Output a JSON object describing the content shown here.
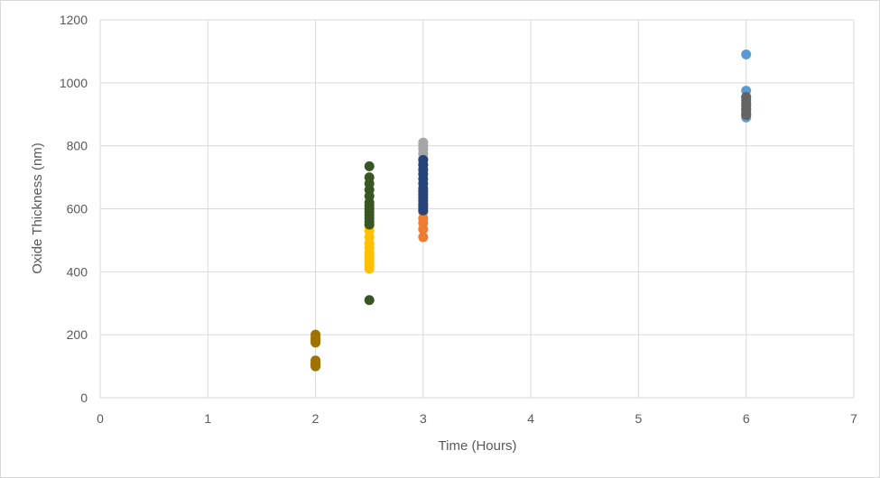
{
  "chart_data": {
    "type": "scatter",
    "title": "",
    "xlabel": "Time (Hours)",
    "ylabel": "Oxide Thickness (nm)",
    "xlim": [
      0,
      7
    ],
    "ylim": [
      0,
      1200
    ],
    "x_ticks": [
      "0",
      "1",
      "2",
      "3",
      "4",
      "5",
      "6",
      "7"
    ],
    "y_ticks": [
      "0",
      "200",
      "400",
      "600",
      "800",
      "1000",
      "1200"
    ],
    "grid": true,
    "legend": "none",
    "series": [
      {
        "color": "#5b9bd5",
        "points": [
          [
            6,
            1090
          ],
          [
            6,
            975
          ],
          [
            6,
            955
          ],
          [
            6,
            930
          ],
          [
            6,
            915
          ],
          [
            6,
            900
          ],
          [
            6,
            890
          ]
        ]
      },
      {
        "color": "#ed7d31",
        "points": [
          [
            3,
            510
          ],
          [
            3,
            535
          ],
          [
            3,
            555
          ],
          [
            3,
            570
          ],
          [
            3,
            590
          ],
          [
            3,
            610
          ]
        ]
      },
      {
        "color": "#a5a5a5",
        "points": [
          [
            3,
            810
          ],
          [
            3,
            800
          ],
          [
            3,
            790
          ],
          [
            3,
            775
          ],
          [
            3,
            760
          ],
          [
            3,
            740
          ],
          [
            3,
            720
          ]
        ]
      },
      {
        "color": "#ffc000",
        "points": [
          [
            2.5,
            410
          ],
          [
            2.5,
            420
          ],
          [
            2.5,
            430
          ],
          [
            2.5,
            440
          ],
          [
            2.5,
            450
          ],
          [
            2.5,
            460
          ],
          [
            2.5,
            475
          ],
          [
            2.5,
            490
          ],
          [
            2.5,
            510
          ],
          [
            2.5,
            530
          ],
          [
            2.5,
            545
          ]
        ]
      },
      {
        "color": "#264478",
        "points": [
          [
            3,
            595
          ],
          [
            3,
            605
          ],
          [
            3,
            615
          ],
          [
            3,
            625
          ],
          [
            3,
            635
          ],
          [
            3,
            645
          ],
          [
            3,
            655
          ],
          [
            3,
            665
          ],
          [
            3,
            680
          ],
          [
            3,
            695
          ],
          [
            3,
            710
          ],
          [
            3,
            725
          ],
          [
            3,
            740
          ],
          [
            3,
            755
          ]
        ]
      },
      {
        "color": "#9e7203",
        "points": [
          [
            2,
            100
          ],
          [
            2,
            105
          ],
          [
            2,
            110
          ],
          [
            2,
            118
          ],
          [
            2,
            175
          ],
          [
            2,
            182
          ],
          [
            2,
            190
          ],
          [
            2,
            200
          ]
        ]
      },
      {
        "color": "#375623",
        "points": [
          [
            2.5,
            310
          ],
          [
            2.5,
            550
          ],
          [
            2.5,
            560
          ],
          [
            2.5,
            570
          ],
          [
            2.5,
            580
          ],
          [
            2.5,
            590
          ],
          [
            2.5,
            600
          ],
          [
            2.5,
            610
          ],
          [
            2.5,
            620
          ],
          [
            2.5,
            640
          ],
          [
            2.5,
            660
          ],
          [
            2.5,
            680
          ],
          [
            2.5,
            700
          ],
          [
            2.5,
            735
          ]
        ]
      },
      {
        "color": "#636363",
        "points": [
          [
            6,
            955
          ],
          [
            6,
            945
          ],
          [
            6,
            935
          ],
          [
            6,
            925
          ],
          [
            6,
            915
          ],
          [
            6,
            905
          ],
          [
            6,
            898
          ]
        ]
      }
    ]
  }
}
